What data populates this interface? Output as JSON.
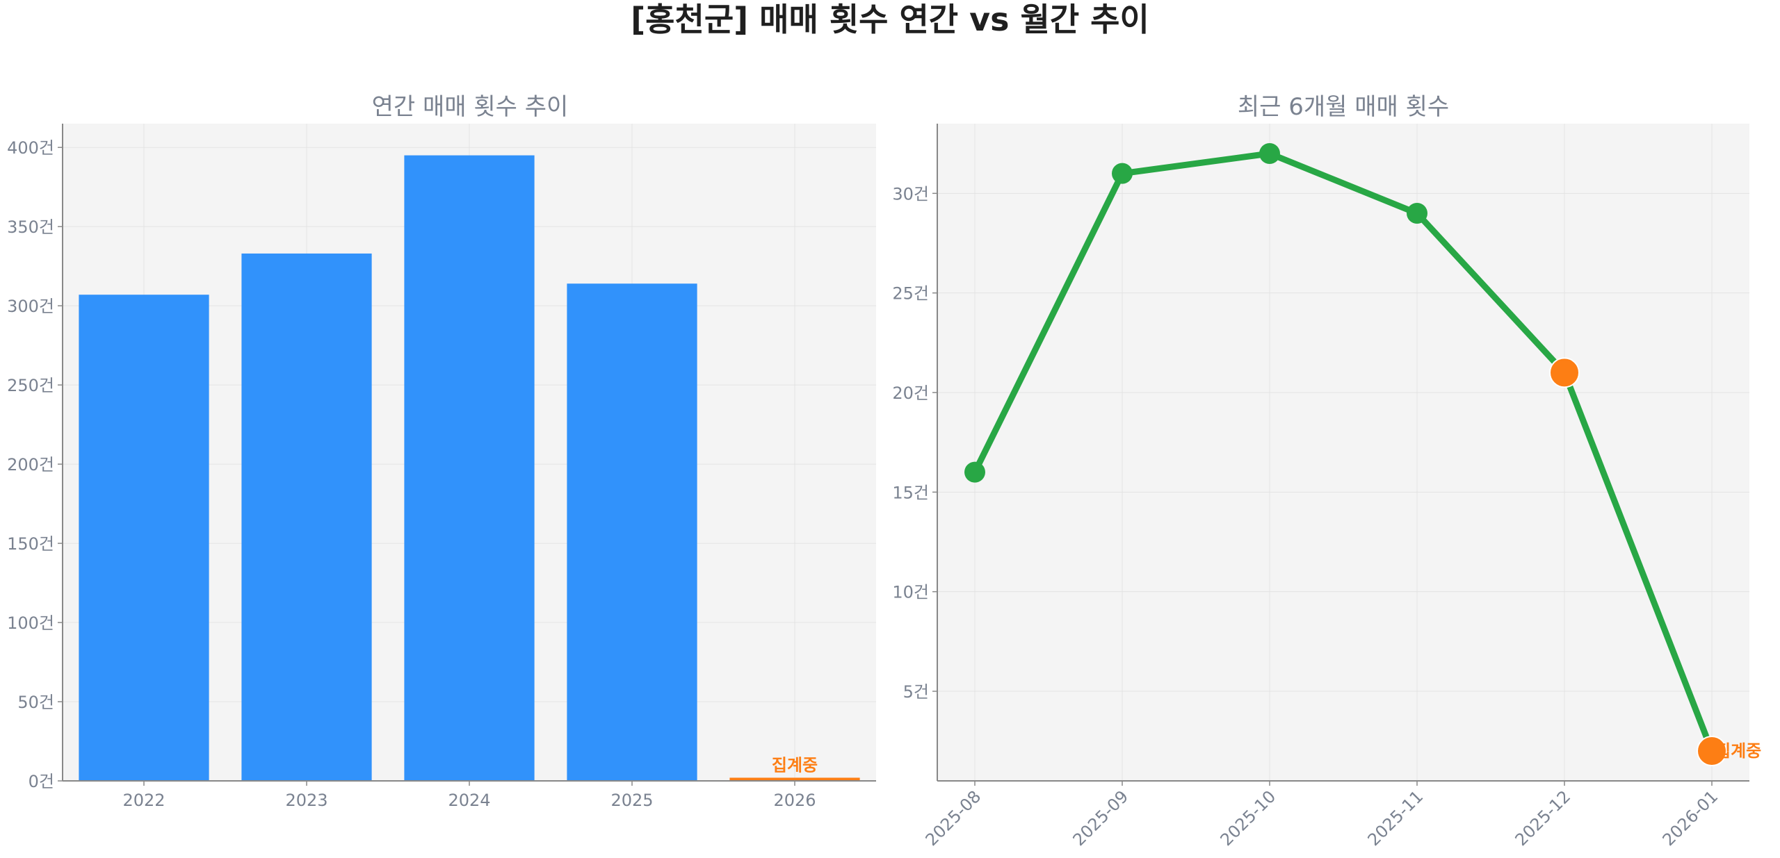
{
  "title": "[홍천군] 매매 횟수 연간 vs 월간 추이",
  "colors": {
    "bar": "#3192fb",
    "line": "#28a745",
    "highlight": "#fd7e14",
    "panel_bg": "#f4f4f4"
  },
  "chart_data": [
    {
      "type": "bar",
      "title": "연간 매매 횟수 추이",
      "categories": [
        "2022",
        "2023",
        "2024",
        "2025",
        "2026"
      ],
      "values": [
        307,
        333,
        395,
        314,
        2
      ],
      "ylim": [
        0,
        415
      ],
      "yticks": [
        0,
        50,
        100,
        150,
        200,
        250,
        300,
        350,
        400
      ],
      "ytick_suffix": "건",
      "grid": true,
      "highlight_index": 4,
      "annotation": {
        "index": 4,
        "text": "집계중"
      }
    },
    {
      "type": "line",
      "title": "최근 6개월 매매 횟수",
      "categories": [
        "2025-08",
        "2025-09",
        "2025-10",
        "2025-11",
        "2025-12",
        "2026-01"
      ],
      "values": [
        16,
        31,
        32,
        29,
        21,
        2
      ],
      "ylim": [
        0.5,
        33.5
      ],
      "yticks": [
        5,
        10,
        15,
        20,
        25,
        30
      ],
      "ytick_suffix": "건",
      "grid": true,
      "highlight_indices": [
        4,
        5
      ],
      "annotation": {
        "index": 5,
        "text": "집계중"
      }
    }
  ]
}
